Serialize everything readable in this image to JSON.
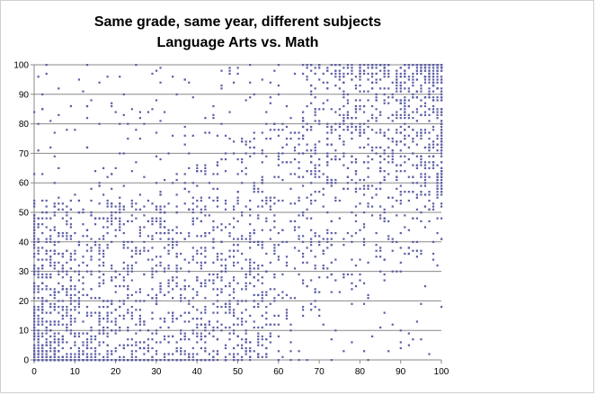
{
  "chart_data": {
    "type": "scatter",
    "title": "Same grade, same year, different subjects",
    "subtitle": "Language Arts vs. Math",
    "xlabel": "",
    "ylabel": "",
    "xlim": [
      0,
      100
    ],
    "ylim": [
      0,
      100
    ],
    "x_ticks": [
      0,
      10,
      20,
      30,
      40,
      50,
      60,
      70,
      80,
      90,
      100
    ],
    "y_ticks": [
      0,
      10,
      20,
      30,
      40,
      50,
      60,
      70,
      80,
      90,
      100
    ],
    "grid": "horizontal",
    "legend": "none",
    "marker_color": "#5b5ea6",
    "point_count_approx": 3000,
    "note_on_points": "Dense cloud of integer-score pairs (x: 0-100, y: 0-100); points are densest near the lower-left and upper-right corners with a positive trend.",
    "series": [
      {
        "points": [
          [
            0,
            0
          ],
          [
            1,
            2
          ],
          [
            2,
            5
          ],
          [
            3,
            1
          ],
          [
            4,
            8
          ],
          [
            5,
            3
          ],
          [
            6,
            12
          ],
          [
            7,
            6
          ],
          [
            8,
            15
          ],
          [
            9,
            4
          ],
          [
            10,
            9
          ],
          [
            11,
            18
          ],
          [
            12,
            2
          ],
          [
            13,
            22
          ],
          [
            14,
            11
          ],
          [
            15,
            7
          ],
          [
            16,
            25
          ],
          [
            17,
            14
          ],
          [
            18,
            3
          ],
          [
            19,
            20
          ],
          [
            20,
            28
          ],
          [
            21,
            10
          ],
          [
            22,
            33
          ],
          [
            23,
            17
          ],
          [
            24,
            5
          ],
          [
            25,
            38
          ],
          [
            26,
            24
          ],
          [
            27,
            13
          ],
          [
            28,
            42
          ],
          [
            29,
            30
          ],
          [
            30,
            19
          ],
          [
            31,
            45
          ],
          [
            32,
            8
          ],
          [
            33,
            36
          ],
          [
            34,
            27
          ],
          [
            35,
            50
          ],
          [
            36,
            15
          ],
          [
            37,
            41
          ],
          [
            38,
            33
          ],
          [
            39,
            55
          ],
          [
            40,
            22
          ],
          [
            41,
            47
          ],
          [
            42,
            38
          ],
          [
            43,
            60
          ],
          [
            44,
            29
          ],
          [
            45,
            52
          ],
          [
            46,
            12
          ],
          [
            47,
            64
          ],
          [
            48,
            43
          ],
          [
            49,
            35
          ],
          [
            50,
            57
          ],
          [
            51,
            68
          ],
          [
            52,
            26
          ],
          [
            53,
            49
          ],
          [
            54,
            72
          ],
          [
            55,
            40
          ],
          [
            56,
            61
          ],
          [
            57,
            18
          ],
          [
            58,
            75
          ],
          [
            59,
            53
          ],
          [
            60,
            66
          ],
          [
            61,
            44
          ],
          [
            62,
            79
          ],
          [
            63,
            58
          ],
          [
            64,
            31
          ],
          [
            65,
            70
          ],
          [
            66,
            82
          ],
          [
            67,
            48
          ],
          [
            68,
            63
          ],
          [
            69,
            85
          ],
          [
            70,
            74
          ],
          [
            71,
            56
          ],
          [
            72,
            88
          ],
          [
            73,
            39
          ],
          [
            74,
            68
          ],
          [
            75,
            80
          ],
          [
            76,
            91
          ],
          [
            77,
            60
          ],
          [
            78,
            77
          ],
          [
            79,
            93
          ],
          [
            80,
            72
          ],
          [
            81,
            86
          ],
          [
            82,
            52
          ],
          [
            83,
            94
          ],
          [
            84,
            81
          ],
          [
            85,
            67
          ],
          [
            86,
            96
          ],
          [
            87,
            89
          ],
          [
            88,
            75
          ],
          [
            89,
            98
          ],
          [
            90,
            92
          ],
          [
            91,
            84
          ],
          [
            92,
            99
          ],
          [
            93,
            70
          ],
          [
            94,
            95
          ],
          [
            95,
            88
          ],
          [
            96,
            99
          ],
          [
            97,
            97
          ],
          [
            98,
            93
          ],
          [
            99,
            100
          ],
          [
            1,
            30
          ],
          [
            3,
            45
          ],
          [
            5,
            60
          ],
          [
            7,
            20
          ],
          [
            9,
            35
          ],
          [
            11,
            50
          ],
          [
            13,
            72
          ],
          [
            15,
            40
          ],
          [
            17,
            65
          ],
          [
            19,
            28
          ],
          [
            21,
            55
          ],
          [
            23,
            80
          ],
          [
            25,
            48
          ],
          [
            27,
            62
          ],
          [
            29,
            85
          ],
          [
            31,
            24
          ],
          [
            33,
            70
          ],
          [
            35,
            90
          ],
          [
            37,
            58
          ],
          [
            39,
            76
          ],
          [
            42,
            12
          ],
          [
            46,
            30
          ],
          [
            50,
            5
          ],
          [
            54,
            20
          ],
          [
            58,
            8
          ],
          [
            62,
            35
          ],
          [
            66,
            15
          ],
          [
            70,
            28
          ],
          [
            74,
            10
          ],
          [
            78,
            42
          ],
          [
            82,
            22
          ],
          [
            86,
            48
          ],
          [
            90,
            30
          ],
          [
            94,
            55
          ],
          [
            98,
            40
          ],
          [
            88,
            12
          ],
          [
            92,
            5
          ],
          [
            96,
            25
          ],
          [
            99,
            60
          ],
          [
            84,
            35
          ],
          [
            2,
            85
          ],
          [
            6,
            92
          ],
          [
            10,
            78
          ],
          [
            14,
            88
          ],
          [
            18,
            96
          ],
          [
            22,
            70
          ],
          [
            26,
            84
          ],
          [
            30,
            98
          ],
          [
            34,
            76
          ],
          [
            38,
            94
          ],
          [
            44,
            82
          ],
          [
            48,
            97
          ],
          [
            52,
            88
          ],
          [
            56,
            95
          ],
          [
            60,
            90
          ],
          [
            64,
            97
          ],
          [
            68,
            93
          ],
          [
            72,
            99
          ],
          [
            76,
            96
          ],
          [
            80,
            99
          ]
        ]
      }
    ]
  }
}
